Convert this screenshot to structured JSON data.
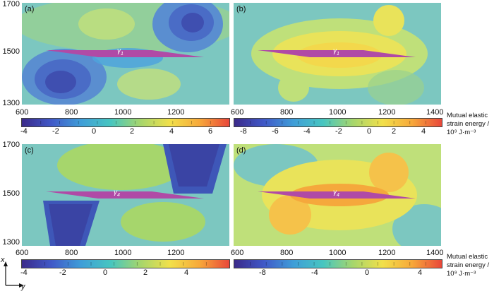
{
  "panels": [
    {
      "label": "(a)",
      "gamma_sym": "γ",
      "gamma_sub": "1"
    },
    {
      "label": "(b)",
      "gamma_sym": "γ",
      "gamma_sub": "1"
    },
    {
      "label": "(c)",
      "gamma_sym": "γ",
      "gamma_sub": "4"
    },
    {
      "label": "(d)",
      "gamma_sym": "γ",
      "gamma_sub": "4"
    }
  ],
  "y_ticks": [
    "1700",
    "1500",
    "1300"
  ],
  "x_ticks_left": [
    "600",
    "800",
    "1000",
    "1200"
  ],
  "x_ticks_right": [
    "600",
    "800",
    "1000",
    "1200",
    "1400"
  ],
  "colorbars": {
    "top_left": [
      "-4",
      "-2",
      "0",
      "2",
      "4",
      "6"
    ],
    "top_right": [
      "-8",
      "-6",
      "-4",
      "-2",
      "0",
      "2",
      "4"
    ],
    "bottom_left": [
      "-4",
      "-2",
      "0",
      "2",
      "4"
    ],
    "bottom_right": [
      "-8",
      "-4",
      "0",
      "4"
    ]
  },
  "colorbar_label": {
    "line1": "Mutual elastic",
    "line2": "strain energy /",
    "line3": "10⁹ J·m⁻³"
  },
  "axes_indicator": {
    "x": "x",
    "y": "y"
  },
  "colors": {
    "colormap": [
      "#3b2a8a",
      "#4059c8",
      "#3f9ed8",
      "#47c6c0",
      "#a6d66c",
      "#f2e04a",
      "#f7a83a",
      "#e9473a"
    ],
    "inclusion": "#b04aa6"
  }
}
